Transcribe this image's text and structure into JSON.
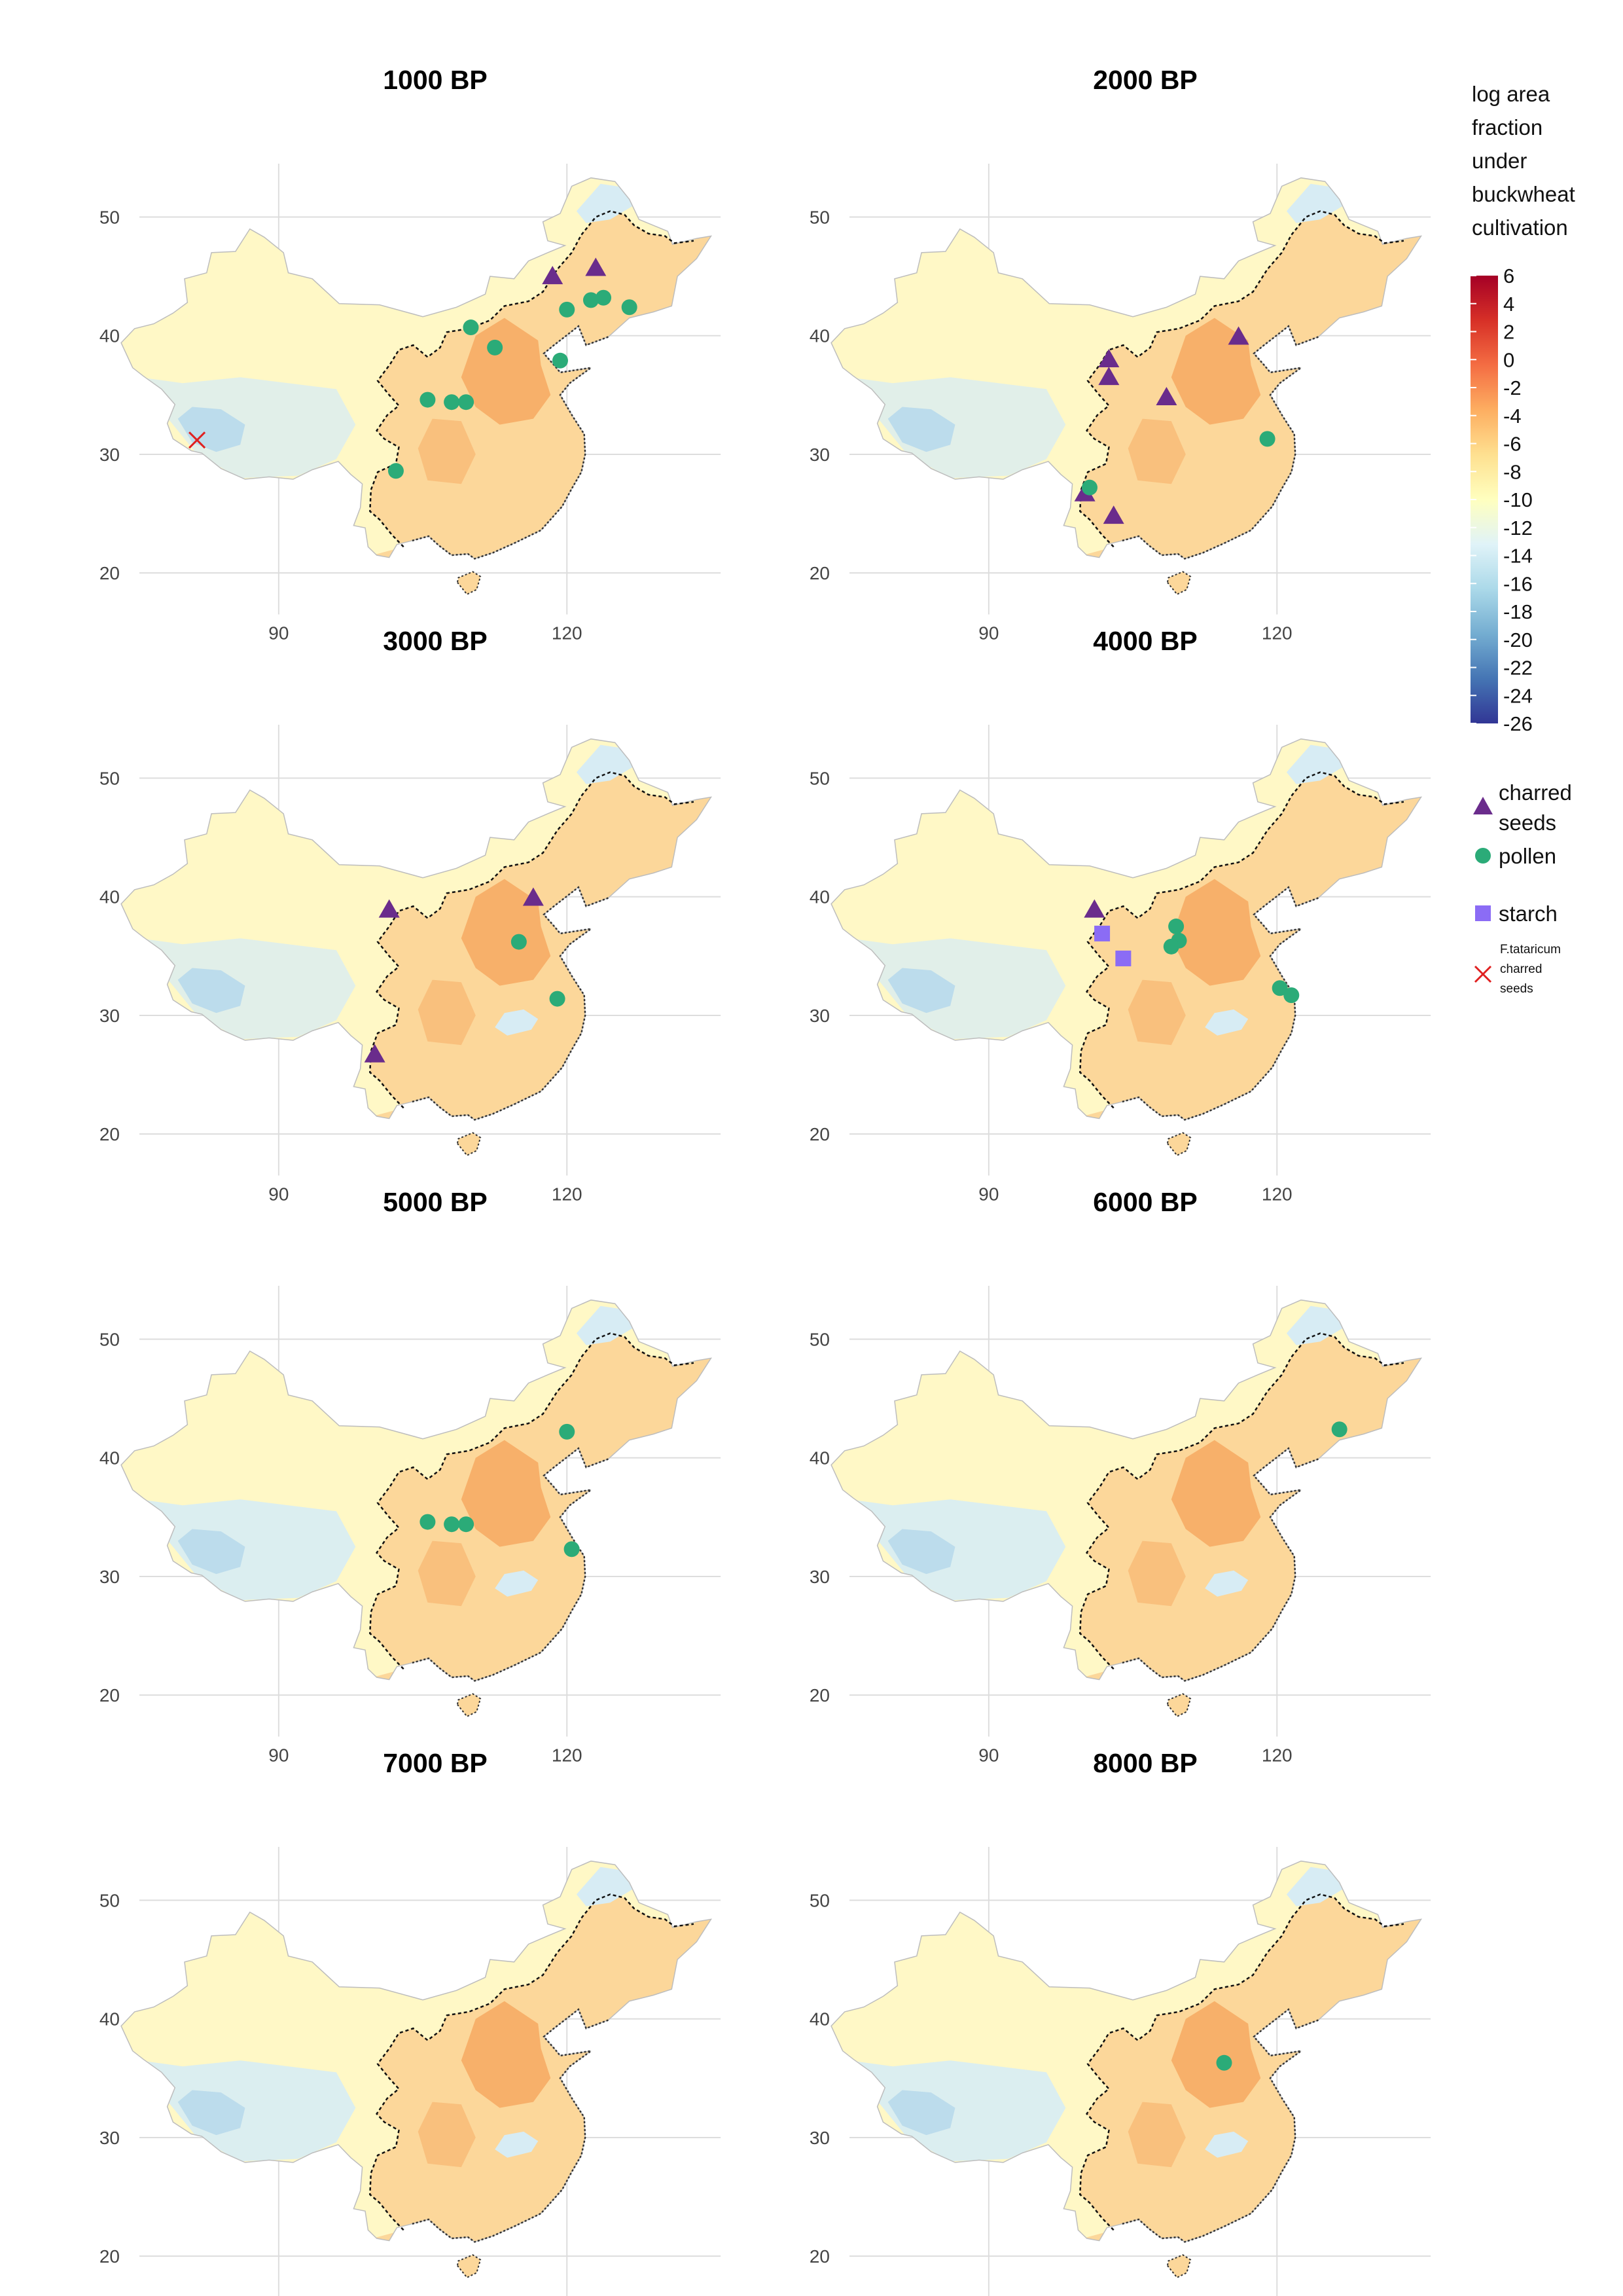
{
  "legend": {
    "title_lines": [
      "log area",
      "fraction",
      "under",
      "buckwheat",
      "cultivation"
    ],
    "scale_ticks": [
      "6",
      "4",
      "2",
      "0",
      "-2",
      "-4",
      "-6",
      "-8",
      "-10",
      "-12",
      "-14",
      "-16",
      "-18",
      "-20",
      "-22",
      "-24",
      "-26"
    ],
    "scale_range": [
      -26,
      6
    ],
    "scale_colors": [
      "#a50026",
      "#d73027",
      "#f46d43",
      "#fdae61",
      "#fee090",
      "#ffffbf",
      "#e0f3f8",
      "#abd9e9",
      "#74add1",
      "#4575b4",
      "#313695"
    ],
    "items": [
      {
        "id": "charred",
        "lines": [
          "charred",
          "seeds"
        ],
        "shape": "triangle",
        "color": "#6a2c8c"
      },
      {
        "id": "pollen",
        "lines": [
          "pollen"
        ],
        "shape": "circle",
        "color": "#2bab78"
      },
      {
        "id": "starch",
        "lines": [
          "starch"
        ],
        "shape": "square",
        "color": "#8b6cf5"
      },
      {
        "id": "tataricum",
        "lines": [
          "F.tataricum",
          "charred",
          "seeds"
        ],
        "shape": "cross",
        "color": "#e02020"
      }
    ]
  },
  "axes": {
    "x_ticks": [
      90,
      120
    ],
    "y_ticks": [
      50,
      40,
      30,
      20
    ],
    "lon_range": [
      75.5,
      136
    ],
    "lat_range": [
      16.5,
      54.5
    ]
  },
  "colors": {
    "map_fill": "#fcd79a",
    "west_fill": "#fff8c6",
    "cold_fill": "#d7ecf4",
    "blue_fill": "#bcdcec",
    "hot_fill": "#f6a35a",
    "grid": "#dddddd",
    "coast": "#333333"
  },
  "panels": [
    {
      "title": "1000 BP",
      "points": [
        {
          "type": "triangle",
          "lon": 118.5,
          "lat": 45.0
        },
        {
          "type": "triangle",
          "lon": 123.0,
          "lat": 45.7
        },
        {
          "type": "circle",
          "lon": 110.0,
          "lat": 40.7
        },
        {
          "type": "circle",
          "lon": 112.5,
          "lat": 39.0
        },
        {
          "type": "circle",
          "lon": 120.0,
          "lat": 42.2
        },
        {
          "type": "circle",
          "lon": 122.5,
          "lat": 43.0
        },
        {
          "type": "circle",
          "lon": 123.8,
          "lat": 43.2
        },
        {
          "type": "circle",
          "lon": 126.5,
          "lat": 42.4
        },
        {
          "type": "circle",
          "lon": 119.3,
          "lat": 37.9
        },
        {
          "type": "circle",
          "lon": 105.5,
          "lat": 34.6
        },
        {
          "type": "circle",
          "lon": 108.0,
          "lat": 34.4
        },
        {
          "type": "circle",
          "lon": 109.5,
          "lat": 34.4
        },
        {
          "type": "circle",
          "lon": 102.2,
          "lat": 28.6
        },
        {
          "type": "cross",
          "lon": 81.5,
          "lat": 31.2
        }
      ]
    },
    {
      "title": "2000 BP",
      "points": [
        {
          "type": "triangle",
          "lon": 102.5,
          "lat": 38.0
        },
        {
          "type": "triangle",
          "lon": 102.5,
          "lat": 36.5
        },
        {
          "type": "triangle",
          "lon": 108.5,
          "lat": 34.8
        },
        {
          "type": "triangle",
          "lon": 116.0,
          "lat": 39.9
        },
        {
          "type": "triangle",
          "lon": 100.0,
          "lat": 26.7
        },
        {
          "type": "triangle",
          "lon": 103.0,
          "lat": 24.8
        },
        {
          "type": "circle",
          "lon": 100.5,
          "lat": 27.2
        },
        {
          "type": "circle",
          "lon": 119.0,
          "lat": 31.3
        }
      ]
    },
    {
      "title": "3000 BP",
      "points": [
        {
          "type": "triangle",
          "lon": 101.5,
          "lat": 38.9
        },
        {
          "type": "triangle",
          "lon": 116.5,
          "lat": 39.9
        },
        {
          "type": "circle",
          "lon": 115.0,
          "lat": 36.2
        },
        {
          "type": "circle",
          "lon": 119.0,
          "lat": 31.4
        },
        {
          "type": "triangle",
          "lon": 100.0,
          "lat": 26.7
        }
      ]
    },
    {
      "title": "4000 BP",
      "points": [
        {
          "type": "triangle",
          "lon": 101.0,
          "lat": 38.9
        },
        {
          "type": "square",
          "lon": 101.8,
          "lat": 36.9
        },
        {
          "type": "square",
          "lon": 104.0,
          "lat": 34.8
        },
        {
          "type": "circle",
          "lon": 109.5,
          "lat": 37.5
        },
        {
          "type": "circle",
          "lon": 109.8,
          "lat": 36.3
        },
        {
          "type": "circle",
          "lon": 109.0,
          "lat": 35.8
        },
        {
          "type": "circle",
          "lon": 120.3,
          "lat": 32.3
        },
        {
          "type": "circle",
          "lon": 121.5,
          "lat": 31.7
        }
      ]
    },
    {
      "title": "5000 BP",
      "points": [
        {
          "type": "circle",
          "lon": 120.0,
          "lat": 42.2
        },
        {
          "type": "circle",
          "lon": 105.5,
          "lat": 34.6
        },
        {
          "type": "circle",
          "lon": 108.0,
          "lat": 34.4
        },
        {
          "type": "circle",
          "lon": 109.5,
          "lat": 34.4
        },
        {
          "type": "circle",
          "lon": 120.5,
          "lat": 32.3
        }
      ]
    },
    {
      "title": "6000 BP",
      "points": [
        {
          "type": "circle",
          "lon": 126.5,
          "lat": 42.4
        }
      ]
    },
    {
      "title": "7000 BP",
      "points": []
    },
    {
      "title": "8000 BP",
      "points": [
        {
          "type": "circle",
          "lon": 114.5,
          "lat": 36.3
        }
      ]
    }
  ]
}
